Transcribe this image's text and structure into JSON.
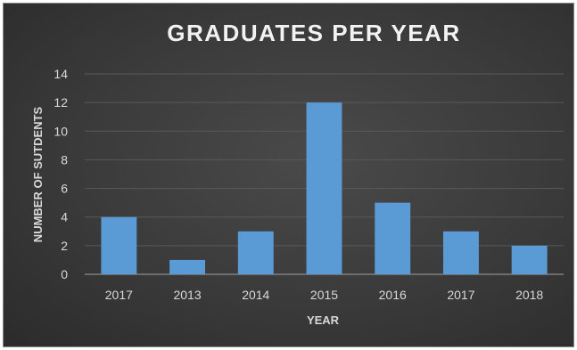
{
  "chart_data": {
    "type": "bar",
    "title": "GRADUATES PER YEAR",
    "xlabel": "YEAR",
    "ylabel": "NUMBER OF SUTDENTS",
    "categories": [
      "2017",
      "2013",
      "2014",
      "2015",
      "2016",
      "2017",
      "2018"
    ],
    "values": [
      4,
      1,
      3,
      12,
      5,
      3,
      2
    ],
    "ylim": [
      0,
      14
    ],
    "yticks": [
      "0",
      "2",
      "4",
      "6",
      "8",
      "10",
      "12",
      "14"
    ],
    "grid": true,
    "legend": "none"
  },
  "colors": {
    "background": "#3a3a3a",
    "bar": "#5b9bd5",
    "gridline": "#595959",
    "text": "#d9d9d9"
  }
}
